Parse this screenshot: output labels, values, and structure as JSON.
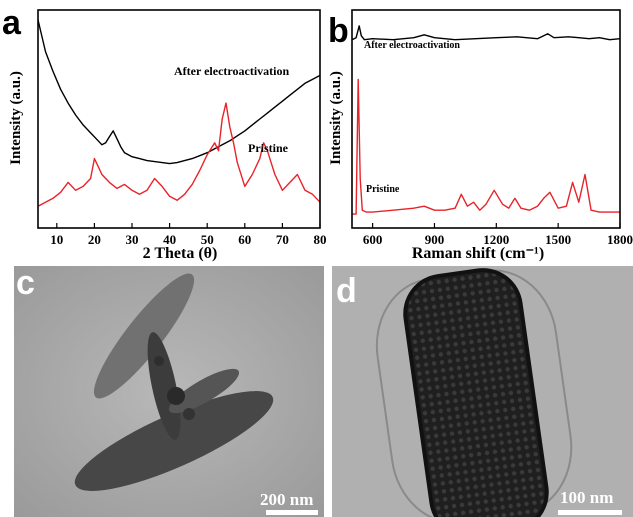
{
  "panels": {
    "a_letter": "a",
    "b_letter": "b",
    "c_letter": "c",
    "d_letter": "d"
  },
  "chart_data": [
    {
      "panel": "a",
      "type": "line",
      "xlabel": "2 Theta (θ)",
      "ylabel": "Intensity (a.u.)",
      "xlim": [
        5,
        80
      ],
      "xticks": [
        10,
        20,
        30,
        40,
        50,
        60,
        70,
        80
      ],
      "grid": false,
      "annotations": [
        {
          "text": "After electroactivation",
          "series": 0
        },
        {
          "text": "Pristine",
          "series": 1
        }
      ],
      "series": [
        {
          "color": "#000000",
          "x": [
            5,
            7,
            9,
            11,
            13,
            15,
            17,
            19,
            21,
            22,
            23,
            24,
            25,
            26,
            27,
            28,
            30,
            32,
            34,
            36,
            38,
            40,
            42,
            44,
            46,
            48,
            50,
            52,
            54,
            56,
            58,
            60,
            62,
            64,
            66,
            68,
            70,
            72,
            74,
            76,
            78,
            80
          ],
          "y": [
            100,
            84,
            74,
            65,
            58,
            52,
            47,
            43,
            39,
            37,
            38,
            41,
            44,
            40,
            36,
            33,
            31,
            30,
            29,
            28.5,
            28,
            27.5,
            28,
            29,
            30,
            31.5,
            33,
            35,
            37,
            39,
            41.5,
            44,
            47,
            50,
            53,
            56,
            59,
            62,
            65,
            68,
            70,
            72
          ]
        },
        {
          "color": "#e8232a",
          "x": [
            5,
            7,
            9,
            11,
            13,
            15,
            17,
            19,
            20,
            21,
            22,
            24,
            26,
            28,
            30,
            32,
            34,
            36,
            38,
            40,
            42,
            44,
            46,
            48,
            50,
            52,
            53,
            54,
            55,
            56,
            57,
            58,
            60,
            62,
            64,
            65,
            66,
            67,
            68,
            70,
            72,
            74,
            76,
            78,
            80
          ],
          "y": [
            6,
            8,
            10,
            13,
            18,
            14,
            16,
            20,
            30,
            26,
            22,
            18,
            15,
            17,
            14,
            12,
            14,
            20,
            16,
            11,
            9,
            12,
            17,
            24,
            32,
            38,
            34,
            50,
            58,
            46,
            38,
            28,
            16,
            22,
            30,
            38,
            34,
            28,
            22,
            14,
            18,
            22,
            14,
            12,
            8
          ]
        }
      ]
    },
    {
      "panel": "b",
      "type": "line",
      "xlabel": "Raman shift (cm⁻¹)",
      "ylabel": "Intensity (a.u.)",
      "xlim": [
        500,
        1800
      ],
      "xticks": [
        600,
        900,
        1200,
        1500,
        1800
      ],
      "grid": false,
      "annotations": [
        {
          "text": "After electroactivation",
          "series": 0
        },
        {
          "text": "Pristine",
          "series": 1
        }
      ],
      "series": [
        {
          "color": "#000000",
          "x": [
            500,
            520,
            535,
            545,
            560,
            600,
            700,
            800,
            850,
            900,
            1000,
            1100,
            1200,
            1300,
            1400,
            1450,
            1480,
            1550,
            1600,
            1650,
            1700,
            1750,
            1800
          ],
          "y": [
            90,
            91,
            97,
            92,
            90,
            90.5,
            90,
            91,
            92.5,
            91,
            90,
            90.5,
            91,
            91.5,
            90.5,
            93,
            91,
            91.5,
            91,
            90.5,
            91,
            90,
            90.5
          ]
        },
        {
          "color": "#e8232a",
          "x": [
            500,
            520,
            530,
            540,
            550,
            570,
            600,
            700,
            800,
            850,
            900,
            950,
            1000,
            1030,
            1060,
            1090,
            1120,
            1150,
            1190,
            1230,
            1260,
            1290,
            1320,
            1360,
            1400,
            1430,
            1460,
            1500,
            1540,
            1570,
            1600,
            1630,
            1660,
            1700,
            1800
          ],
          "y": [
            2,
            2,
            70,
            20,
            4,
            3,
            3,
            4,
            5,
            6,
            4,
            4,
            5,
            12,
            6,
            8,
            4,
            7,
            14,
            7,
            5,
            10,
            5,
            4,
            6,
            10,
            13,
            5,
            6,
            18,
            8,
            22,
            4,
            3,
            3
          ]
        }
      ]
    }
  ],
  "tem_c": {
    "scale_label": "200 nm"
  },
  "tem_d": {
    "scale_label": "100 nm"
  }
}
